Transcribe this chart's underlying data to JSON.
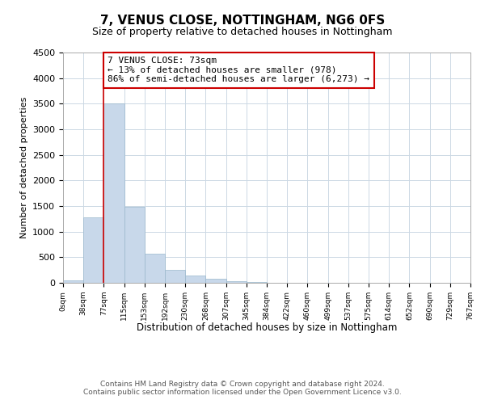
{
  "title": "7, VENUS CLOSE, NOTTINGHAM, NG6 0FS",
  "subtitle": "Size of property relative to detached houses in Nottingham",
  "xlabel": "Distribution of detached houses by size in Nottingham",
  "ylabel": "Number of detached properties",
  "bar_values": [
    50,
    1275,
    3500,
    1480,
    575,
    245,
    135,
    75,
    30,
    10,
    5,
    0,
    0,
    0,
    0,
    0,
    0,
    0,
    0,
    0
  ],
  "bin_labels": [
    "0sqm",
    "38sqm",
    "77sqm",
    "115sqm",
    "153sqm",
    "192sqm",
    "230sqm",
    "268sqm",
    "307sqm",
    "345sqm",
    "384sqm",
    "422sqm",
    "460sqm",
    "499sqm",
    "537sqm",
    "575sqm",
    "614sqm",
    "652sqm",
    "690sqm",
    "729sqm",
    "767sqm"
  ],
  "bar_color": "#c8d8ea",
  "bar_edge_color": "#9ab8cc",
  "marker_color": "#cc0000",
  "annotation_line1": "7 VENUS CLOSE: 73sqm",
  "annotation_line2": "← 13% of detached houses are smaller (978)",
  "annotation_line3": "86% of semi-detached houses are larger (6,273) →",
  "annotation_box_color": "#ffffff",
  "annotation_box_edge": "#cc0000",
  "ylim": [
    0,
    4500
  ],
  "yticks": [
    0,
    500,
    1000,
    1500,
    2000,
    2500,
    3000,
    3500,
    4000,
    4500
  ],
  "footer_line1": "Contains HM Land Registry data © Crown copyright and database right 2024.",
  "footer_line2": "Contains public sector information licensed under the Open Government Licence v3.0.",
  "bg_color": "#ffffff",
  "grid_color": "#ccd8e4"
}
